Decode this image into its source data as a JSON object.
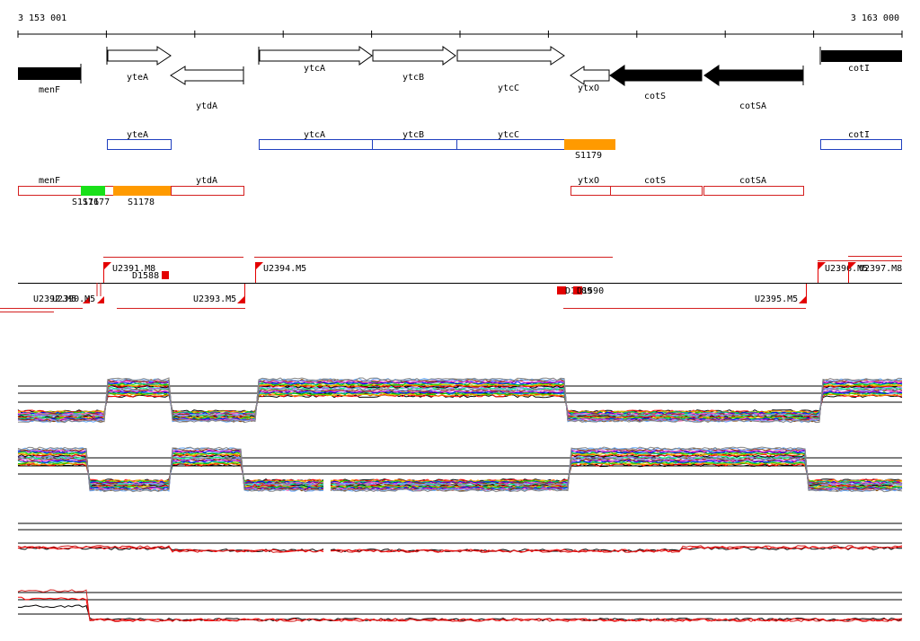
{
  "axis": {
    "start_label": "3 153 001",
    "end_label": "3 163 000",
    "start": 3153001,
    "end": 3163000
  },
  "colors": {
    "cds_outline": "#000000",
    "cds_fill_reverse": "#000000",
    "transcript_blue": "#1f3fbf",
    "transcript_red": "#d42020",
    "segment_orange": "#ff9a00",
    "segment_green": "#19e019",
    "marker_red": "#e30000"
  },
  "genes": [
    {
      "name": "menF",
      "strand": "-",
      "filled": true
    },
    {
      "name": "yteA",
      "strand": "+",
      "filled": false
    },
    {
      "name": "ytdA",
      "strand": "-",
      "filled": false
    },
    {
      "name": "ytcA",
      "strand": "+",
      "filled": false
    },
    {
      "name": "ytcB",
      "strand": "+",
      "filled": false
    },
    {
      "name": "ytcC",
      "strand": "+",
      "filled": false
    },
    {
      "name": "ytxO",
      "strand": "-",
      "filled": false
    },
    {
      "name": "cotS",
      "strand": "-",
      "filled": true
    },
    {
      "name": "cotSA",
      "strand": "-",
      "filled": true
    },
    {
      "name": "cotI",
      "strand": "+",
      "filled": true
    }
  ],
  "plus_transcripts": [
    {
      "label": "yteA"
    },
    {
      "label": "ytcA"
    },
    {
      "label": "ytcB"
    },
    {
      "label": "ytcC"
    },
    {
      "label": "S1179",
      "segment": "orange"
    },
    {
      "label": "cotI"
    }
  ],
  "minus_transcripts": [
    {
      "label": "menF"
    },
    {
      "label": "S1176"
    },
    {
      "label": "S1177",
      "segment": "green"
    },
    {
      "label": "S1178",
      "segment": "orange"
    },
    {
      "label": "ytdA"
    },
    {
      "label": "ytxO"
    },
    {
      "label": "cotS"
    },
    {
      "label": "cotSA"
    }
  ],
  "upshifts": [
    {
      "label": "U2391.M8"
    },
    {
      "label": "D1588"
    },
    {
      "label": "U2394.M5"
    },
    {
      "label": "U2396.M5"
    },
    {
      "label": "U2397.M8"
    },
    {
      "label": "U2392.M5"
    },
    {
      "label": "U2390.M5"
    },
    {
      "label": "U2393.M5"
    },
    {
      "label": "D1589"
    },
    {
      "label": "D1590"
    },
    {
      "label": "U2395.M5"
    }
  ]
}
